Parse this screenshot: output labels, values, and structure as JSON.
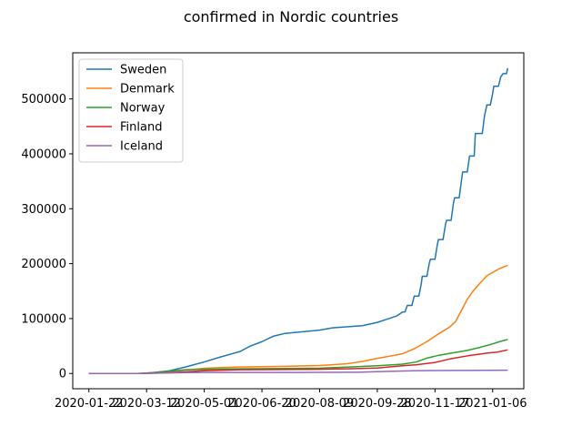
{
  "chart_data": {
    "type": "line",
    "title": "confirmed in  Nordic countries",
    "xlabel": "",
    "ylabel": "",
    "grid": false,
    "legend_position": "top-left",
    "x_type": "date",
    "xlim": [
      "2020-01-08",
      "2021-02-02"
    ],
    "ylim": [
      -27800,
      584000
    ],
    "x_ticks": [
      "2020-01-22",
      "2020-03-12",
      "2020-05-01",
      "2020-06-20",
      "2020-08-09",
      "2020-09-28",
      "2020-11-17",
      "2021-01-06"
    ],
    "y_ticks": [
      0,
      100000,
      200000,
      300000,
      400000,
      500000
    ],
    "series": [
      {
        "name": "Sweden",
        "color": "#1f77b4",
        "points": [
          [
            "2020-01-22",
            0
          ],
          [
            "2020-03-05",
            0
          ],
          [
            "2020-03-12",
            700
          ],
          [
            "2020-03-20",
            2000
          ],
          [
            "2020-04-01",
            5000
          ],
          [
            "2020-04-15",
            12000
          ],
          [
            "2020-05-01",
            21000
          ],
          [
            "2020-05-15",
            30000
          ],
          [
            "2020-06-01",
            40000
          ],
          [
            "2020-06-10",
            50000
          ],
          [
            "2020-06-20",
            58000
          ],
          [
            "2020-06-30",
            68000
          ],
          [
            "2020-07-10",
            73000
          ],
          [
            "2020-07-20",
            75000
          ],
          [
            "2020-08-09",
            79000
          ],
          [
            "2020-08-20",
            83000
          ],
          [
            "2020-09-01",
            85000
          ],
          [
            "2020-09-15",
            87000
          ],
          [
            "2020-09-28",
            93000
          ],
          [
            "2020-10-08",
            100000
          ],
          [
            "2020-10-15",
            105000
          ],
          [
            "2020-10-20",
            112000
          ],
          [
            "2020-10-22",
            112000
          ],
          [
            "2020-10-24",
            124000
          ],
          [
            "2020-10-28",
            124000
          ],
          [
            "2020-10-30",
            141000
          ],
          [
            "2020-11-03",
            141000
          ],
          [
            "2020-11-05",
            162000
          ],
          [
            "2020-11-06",
            177000
          ],
          [
            "2020-11-10",
            177000
          ],
          [
            "2020-11-12",
            200000
          ],
          [
            "2020-11-13",
            208000
          ],
          [
            "2020-11-17",
            208000
          ],
          [
            "2020-11-19",
            234000
          ],
          [
            "2020-11-20",
            244000
          ],
          [
            "2020-11-24",
            244000
          ],
          [
            "2020-11-26",
            270000
          ],
          [
            "2020-11-27",
            279000
          ],
          [
            "2020-12-01",
            279000
          ],
          [
            "2020-12-03",
            310000
          ],
          [
            "2020-12-04",
            320000
          ],
          [
            "2020-12-08",
            320000
          ],
          [
            "2020-12-10",
            352000
          ],
          [
            "2020-12-11",
            367000
          ],
          [
            "2020-12-15",
            367000
          ],
          [
            "2020-12-17",
            396000
          ],
          [
            "2020-12-21",
            396000
          ],
          [
            "2020-12-22",
            437000
          ],
          [
            "2020-12-28",
            437000
          ],
          [
            "2020-12-30",
            470000
          ],
          [
            "2021-01-01",
            489000
          ],
          [
            "2021-01-04",
            489000
          ],
          [
            "2021-01-06",
            510000
          ],
          [
            "2021-01-07",
            523000
          ],
          [
            "2021-01-11",
            523000
          ],
          [
            "2021-01-13",
            540000
          ],
          [
            "2021-01-15",
            546000
          ],
          [
            "2021-01-18",
            546000
          ],
          [
            "2021-01-19",
            556000
          ]
        ]
      },
      {
        "name": "Denmark",
        "color": "#ff7f0e",
        "points": [
          [
            "2020-01-22",
            0
          ],
          [
            "2020-03-05",
            0
          ],
          [
            "2020-03-12",
            700
          ],
          [
            "2020-04-01",
            3000
          ],
          [
            "2020-04-15",
            6500
          ],
          [
            "2020-05-01",
            9400
          ],
          [
            "2020-05-15",
            10800
          ],
          [
            "2020-06-01",
            11700
          ],
          [
            "2020-06-20",
            12500
          ],
          [
            "2020-07-10",
            13000
          ],
          [
            "2020-08-09",
            14500
          ],
          [
            "2020-08-20",
            16000
          ],
          [
            "2020-09-01",
            17500
          ],
          [
            "2020-09-15",
            22000
          ],
          [
            "2020-09-28",
            27500
          ],
          [
            "2020-10-10",
            32000
          ],
          [
            "2020-10-20",
            36000
          ],
          [
            "2020-10-30",
            45000
          ],
          [
            "2020-11-10",
            58000
          ],
          [
            "2020-11-20",
            72000
          ],
          [
            "2020-11-30",
            85000
          ],
          [
            "2020-12-05",
            95000
          ],
          [
            "2020-12-10",
            115000
          ],
          [
            "2020-12-15",
            135000
          ],
          [
            "2020-12-20",
            150000
          ],
          [
            "2020-12-25",
            162000
          ],
          [
            "2021-01-01",
            178000
          ],
          [
            "2021-01-06",
            184000
          ],
          [
            "2021-01-12",
            191000
          ],
          [
            "2021-01-19",
            197000
          ]
        ]
      },
      {
        "name": "Norway",
        "color": "#2ca02c",
        "points": [
          [
            "2020-01-22",
            0
          ],
          [
            "2020-03-05",
            0
          ],
          [
            "2020-03-12",
            600
          ],
          [
            "2020-03-25",
            3000
          ],
          [
            "2020-04-15",
            6800
          ],
          [
            "2020-05-01",
            7700
          ],
          [
            "2020-06-01",
            8500
          ],
          [
            "2020-07-10",
            9000
          ],
          [
            "2020-08-09",
            9800
          ],
          [
            "2020-09-01",
            11500
          ],
          [
            "2020-09-28",
            14000
          ],
          [
            "2020-10-20",
            17000
          ],
          [
            "2020-11-01",
            21000
          ],
          [
            "2020-11-10",
            28000
          ],
          [
            "2020-11-20",
            33000
          ],
          [
            "2020-12-01",
            37000
          ],
          [
            "2020-12-15",
            42000
          ],
          [
            "2020-12-25",
            47000
          ],
          [
            "2021-01-01",
            51000
          ],
          [
            "2021-01-06",
            54000
          ],
          [
            "2021-01-12",
            58000
          ],
          [
            "2021-01-19",
            62000
          ]
        ]
      },
      {
        "name": "Finland",
        "color": "#d62728",
        "points": [
          [
            "2020-01-22",
            0
          ],
          [
            "2020-03-05",
            0
          ],
          [
            "2020-03-12",
            100
          ],
          [
            "2020-04-01",
            1500
          ],
          [
            "2020-04-15",
            3200
          ],
          [
            "2020-05-01",
            5000
          ],
          [
            "2020-06-01",
            6900
          ],
          [
            "2020-07-10",
            7300
          ],
          [
            "2020-08-09",
            7700
          ],
          [
            "2020-09-01",
            8400
          ],
          [
            "2020-09-28",
            10000
          ],
          [
            "2020-10-20",
            14000
          ],
          [
            "2020-11-01",
            16000
          ],
          [
            "2020-11-17",
            20000
          ],
          [
            "2020-12-01",
            27000
          ],
          [
            "2020-12-15",
            32000
          ],
          [
            "2021-01-01",
            37000
          ],
          [
            "2021-01-10",
            39000
          ],
          [
            "2021-01-19",
            43000
          ]
        ]
      },
      {
        "name": "Iceland",
        "color": "#9467bd",
        "points": [
          [
            "2020-01-22",
            0
          ],
          [
            "2020-03-05",
            0
          ],
          [
            "2020-03-12",
            150
          ],
          [
            "2020-04-01",
            1100
          ],
          [
            "2020-04-15",
            1700
          ],
          [
            "2020-05-01",
            1800
          ],
          [
            "2020-07-20",
            1900
          ],
          [
            "2020-08-09",
            2000
          ],
          [
            "2020-09-10",
            2300
          ],
          [
            "2020-09-28",
            3200
          ],
          [
            "2020-10-20",
            4500
          ],
          [
            "2020-11-05",
            5100
          ],
          [
            "2020-11-17",
            5300
          ],
          [
            "2020-12-15",
            5600
          ],
          [
            "2021-01-19",
            6000
          ]
        ]
      }
    ]
  }
}
